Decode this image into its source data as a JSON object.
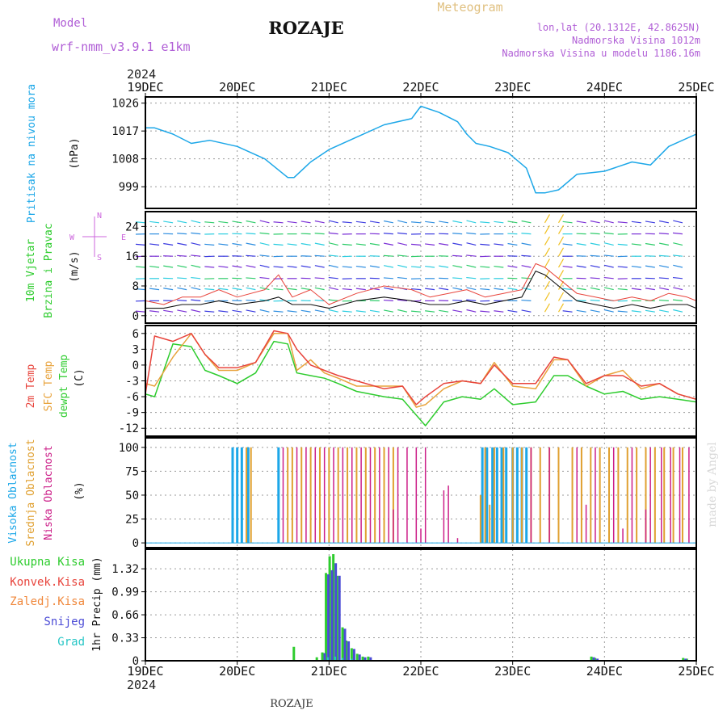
{
  "header": {
    "model_label": "Model",
    "model_name": "wrf-nmm_v3.9.1 e1km",
    "title": "ROZAJE",
    "subtitle": "Meteogram",
    "lonlat": "lon,lat (20.1312E, 42.8625N)",
    "elevation": "Nadmorska Visina 1012m",
    "model_elevation": "Nadmorska Visina u modelu 1186.16m",
    "year_top": "2024",
    "year_bottom": "2024",
    "footer": "ROZAJE",
    "credit": "made by Angel"
  },
  "colors": {
    "pressure": "#1ca7e8",
    "temp": "#e8443c",
    "sfc": "#e8a33c",
    "dewpt": "#2ecc2e",
    "high_cloud": "#1ca7e8",
    "mid_cloud": "#e0a030",
    "low_cloud": "#cc1e88",
    "total": "#2ecc2e",
    "convective": "#e8443c",
    "frozen": "#f0883c",
    "snow": "#4b4bd6",
    "graupel": "#27c6c6"
  },
  "legend": {
    "pressure": [
      "Pritisak na nivou mora",
      "(hPa)"
    ],
    "wind": [
      "10m Vjetar",
      "Brzina i Pravac",
      "(m/s)"
    ],
    "compass": {
      "n": "N",
      "s": "S",
      "e": "E",
      "w": "W"
    },
    "temp": [
      "2m Temp",
      "SFC Temp",
      "dewpt Temp",
      "(C)"
    ],
    "cloud": [
      "Visoka Oblacnost",
      "Srednja Oblacnost",
      "Niska Oblacnost",
      "(%)"
    ],
    "precip": [
      "Ukupna Kisa",
      "Konvek.Kisa",
      "Zaledj.Kisa",
      "Snijeg",
      "Grad"
    ],
    "precip_axis": "1hr Precip (mm)"
  },
  "chart_data": {
    "type": "line",
    "x_days": [
      "19DEC",
      "20DEC",
      "21DEC",
      "22DEC",
      "23DEC",
      "24DEC",
      "25DEC"
    ],
    "pressure": {
      "ylim": [
        992,
        1028
      ],
      "yticks": [
        999,
        1008,
        1017,
        1026
      ],
      "t": [
        0,
        0.1,
        0.3,
        0.5,
        0.7,
        1.0,
        1.3,
        1.55,
        1.62,
        1.8,
        2.0,
        2.3,
        2.6,
        2.9,
        3.0,
        3.2,
        3.4,
        3.5,
        3.6,
        3.75,
        3.95,
        4.15,
        4.25,
        4.35,
        4.5,
        4.7,
        5.0,
        5.3,
        5.5,
        5.7,
        6.0
      ],
      "values": [
        1018,
        1018,
        1016,
        1013,
        1014,
        1012,
        1008,
        1002,
        1002,
        1007,
        1011,
        1015,
        1019,
        1021,
        1025,
        1023,
        1020,
        1016,
        1013,
        1012,
        1010,
        1005,
        997,
        997,
        998,
        1003,
        1004,
        1007,
        1006,
        1012,
        1016
      ]
    },
    "wind": {
      "ylim": [
        -2,
        28
      ],
      "yticks": [
        0,
        8,
        16,
        24
      ],
      "t": [
        0,
        0.2,
        0.4,
        0.6,
        0.8,
        1.0,
        1.3,
        1.45,
        1.6,
        1.8,
        2.0,
        2.3,
        2.6,
        2.9,
        3.1,
        3.3,
        3.5,
        3.7,
        3.9,
        4.1,
        4.25,
        4.35,
        4.5,
        4.7,
        4.9,
        5.1,
        5.3,
        5.5,
        5.7,
        5.9,
        6.0
      ],
      "speed": [
        2,
        2,
        3,
        3,
        4,
        3,
        4,
        5,
        3,
        3,
        2,
        4,
        5,
        4,
        3,
        3,
        4,
        3,
        4,
        5,
        12,
        11,
        8,
        4,
        3,
        2,
        3,
        2,
        3,
        3,
        2
      ],
      "gust": [
        4,
        3,
        5,
        5,
        7,
        5,
        7,
        11,
        5,
        7,
        3,
        6,
        8,
        7,
        5,
        6,
        7,
        5,
        6,
        7,
        14,
        13,
        10,
        6,
        5,
        4,
        5,
        4,
        6,
        5,
        4
      ]
    },
    "temperature": {
      "ylim": [
        -13.5,
        7.5
      ],
      "yticks": [
        6,
        3,
        0,
        -3,
        -6,
        -9,
        -12
      ],
      "t": [
        0,
        0.1,
        0.3,
        0.5,
        0.65,
        0.8,
        1.0,
        1.2,
        1.4,
        1.55,
        1.65,
        1.8,
        1.95,
        2.1,
        2.3,
        2.6,
        2.8,
        2.95,
        3.05,
        3.25,
        3.45,
        3.65,
        3.8,
        4.0,
        4.25,
        4.45,
        4.6,
        4.8,
        5.0,
        5.2,
        5.4,
        5.6,
        5.8,
        6.0
      ],
      "t2m": [
        -5.5,
        5.5,
        4.5,
        6.0,
        2.0,
        -0.5,
        -0.5,
        0.5,
        6.5,
        6.0,
        3.0,
        0.0,
        -1.0,
        -2.0,
        -3.0,
        -4.5,
        -4.0,
        -7.5,
        -6.0,
        -3.5,
        -3.0,
        -3.5,
        0.0,
        -3.5,
        -3.5,
        1.5,
        1.0,
        -3.5,
        -2.0,
        -2.0,
        -4.0,
        -3.5,
        -5.5,
        -6.5
      ],
      "sfc": [
        -3.5,
        -4.0,
        1.5,
        6.0,
        2.0,
        -1.0,
        -1.0,
        0.5,
        6.0,
        6.0,
        -1.0,
        1.0,
        -1.5,
        -2.5,
        -4.0,
        -4.0,
        -4.0,
        -8.0,
        -7.5,
        -4.5,
        -3.0,
        -3.5,
        0.5,
        -4.0,
        -4.5,
        1.0,
        1.0,
        -4.0,
        -2.0,
        -1.0,
        -4.5,
        -3.5,
        -5.5,
        -6.5
      ],
      "dewpt": [
        -5.5,
        -6.0,
        4.0,
        3.5,
        -1.0,
        -2.0,
        -3.5,
        -1.5,
        4.5,
        4.0,
        -1.5,
        -2.0,
        -2.5,
        -3.5,
        -5.0,
        -6.0,
        -6.5,
        -9.5,
        -11.5,
        -7.0,
        -6.0,
        -6.5,
        -4.5,
        -7.5,
        -7.0,
        -2.0,
        -2.0,
        -4.0,
        -5.5,
        -5.0,
        -6.5,
        -6.0,
        -6.5,
        -7.0
      ]
    },
    "cloud": {
      "ylim": [
        -5,
        110
      ],
      "yticks": [
        0,
        25,
        50,
        75,
        100
      ],
      "high": [
        [
          0.95,
          100
        ],
        [
          1.0,
          100
        ],
        [
          1.05,
          100
        ],
        [
          1.12,
          100
        ],
        [
          1.45,
          100
        ],
        [
          3.67,
          100
        ],
        [
          3.72,
          100
        ],
        [
          3.78,
          100
        ],
        [
          3.83,
          100
        ],
        [
          3.88,
          100
        ],
        [
          3.93,
          100
        ],
        [
          4.0,
          100
        ],
        [
          4.05,
          100
        ],
        [
          4.1,
          100
        ],
        [
          4.15,
          100
        ]
      ],
      "mid": [
        [
          1.1,
          100
        ],
        [
          1.15,
          100
        ],
        [
          1.55,
          100
        ],
        [
          1.6,
          100
        ],
        [
          1.7,
          100
        ],
        [
          1.8,
          100
        ],
        [
          1.9,
          100
        ],
        [
          2.0,
          100
        ],
        [
          2.1,
          100
        ],
        [
          2.2,
          100
        ],
        [
          2.3,
          100
        ],
        [
          2.4,
          100
        ],
        [
          2.5,
          100
        ],
        [
          2.6,
          100
        ],
        [
          2.7,
          100
        ],
        [
          3.7,
          100
        ],
        [
          3.8,
          100
        ],
        [
          3.9,
          100
        ],
        [
          4.0,
          100
        ],
        [
          4.1,
          100
        ],
        [
          4.2,
          100
        ],
        [
          4.3,
          100
        ],
        [
          4.4,
          100
        ],
        [
          4.5,
          100
        ],
        [
          4.65,
          100
        ],
        [
          4.75,
          100
        ],
        [
          4.85,
          100
        ],
        [
          4.95,
          100
        ],
        [
          5.05,
          100
        ],
        [
          5.15,
          100
        ],
        [
          5.25,
          100
        ],
        [
          5.35,
          100
        ],
        [
          5.45,
          100
        ],
        [
          5.55,
          100
        ],
        [
          5.65,
          100
        ],
        [
          5.75,
          100
        ],
        [
          5.85,
          100
        ],
        [
          3.65,
          50
        ],
        [
          3.75,
          40
        ]
      ],
      "low": [
        [
          1.5,
          100
        ],
        [
          1.65,
          100
        ],
        [
          1.75,
          100
        ],
        [
          1.85,
          100
        ],
        [
          1.95,
          100
        ],
        [
          2.05,
          100
        ],
        [
          2.15,
          100
        ],
        [
          2.25,
          100
        ],
        [
          2.35,
          100
        ],
        [
          2.45,
          100
        ],
        [
          2.55,
          100
        ],
        [
          2.65,
          100
        ],
        [
          2.75,
          100
        ],
        [
          2.85,
          100
        ],
        [
          2.95,
          100
        ],
        [
          3.05,
          100
        ],
        [
          4.2,
          100
        ],
        [
          4.4,
          100
        ],
        [
          4.7,
          100
        ],
        [
          4.9,
          100
        ],
        [
          5.1,
          100
        ],
        [
          5.3,
          100
        ],
        [
          5.5,
          100
        ],
        [
          5.62,
          100
        ],
        [
          5.72,
          100
        ],
        [
          5.82,
          100
        ],
        [
          5.92,
          100
        ],
        [
          3.25,
          55
        ],
        [
          3.3,
          60
        ],
        [
          2.7,
          35
        ],
        [
          3.0,
          15
        ],
        [
          3.4,
          5
        ],
        [
          4.8,
          40
        ],
        [
          5.2,
          15
        ],
        [
          5.45,
          35
        ]
      ]
    },
    "precip": {
      "ylim": [
        0,
        1.6
      ],
      "yticks": [
        0,
        0.33,
        0.66,
        0.99,
        1.32
      ],
      "total": [
        [
          1.63,
          0.2
        ],
        [
          1.88,
          0.05
        ],
        [
          1.94,
          0.12
        ],
        [
          1.98,
          1.26
        ],
        [
          2.02,
          1.5
        ],
        [
          2.06,
          1.53
        ],
        [
          2.1,
          1.22
        ],
        [
          2.16,
          0.48
        ],
        [
          2.2,
          0.29
        ],
        [
          2.26,
          0.18
        ],
        [
          2.32,
          0.1
        ],
        [
          2.38,
          0.06
        ],
        [
          2.44,
          0.06
        ],
        [
          4.87,
          0.06
        ],
        [
          4.91,
          0.04
        ],
        [
          5.87,
          0.04
        ],
        [
          5.91,
          0.03
        ]
      ],
      "snow": [
        [
          1.94,
          0.11
        ],
        [
          1.98,
          1.24
        ],
        [
          2.02,
          1.3
        ],
        [
          2.06,
          1.4
        ],
        [
          2.1,
          1.22
        ],
        [
          2.16,
          0.46
        ],
        [
          2.2,
          0.28
        ],
        [
          2.26,
          0.17
        ],
        [
          2.32,
          0.09
        ],
        [
          2.38,
          0.05
        ],
        [
          2.44,
          0.05
        ],
        [
          4.87,
          0.05
        ],
        [
          4.91,
          0.03
        ],
        [
          5.87,
          0.03
        ]
      ],
      "graupel": [
        [
          1.96,
          0.05
        ],
        [
          2.04,
          0.06
        ],
        [
          2.12,
          0.04
        ],
        [
          2.22,
          0.03
        ]
      ]
    }
  }
}
